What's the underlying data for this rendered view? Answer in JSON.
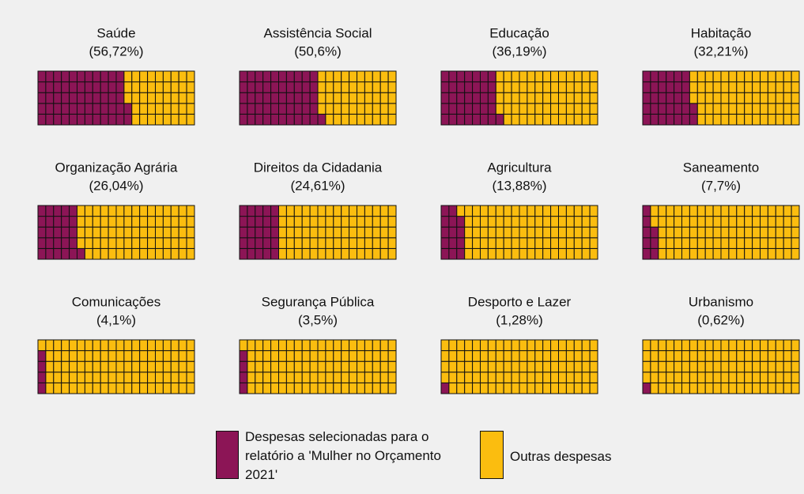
{
  "chart_data": {
    "type": "waffle",
    "rows": 5,
    "columns": 20,
    "series": [
      {
        "name": "Despesas selecionadas para o relatório a 'Mulher no Orçamento 2021'",
        "color": "#8c1556"
      },
      {
        "name": "Outras despesas",
        "color": "#fbbd0f"
      }
    ],
    "categories": [
      "Saúde",
      "Assistência Social",
      "Educação",
      "Habitação",
      "Organização Agrária",
      "Direitos da Cidadania",
      "Agricultura",
      "Saneamento",
      "Comunicações",
      "Segurança Pública",
      "Desporto e Lazer",
      "Urbanismo"
    ],
    "values": [
      56.72,
      50.6,
      36.19,
      32.21,
      26.04,
      24.61,
      13.88,
      7.7,
      4.1,
      3.5,
      1.28,
      0.62
    ],
    "value_labels": [
      "(56,72%)",
      "(50,6%)",
      "(36,19%)",
      "(32,21%)",
      "(26,04%)",
      "(24,61%)",
      "(13,88%)",
      "(7,7%)",
      "(4,1%)",
      "(3,5%)",
      "(1,28%)",
      "(0,62%)"
    ]
  }
}
